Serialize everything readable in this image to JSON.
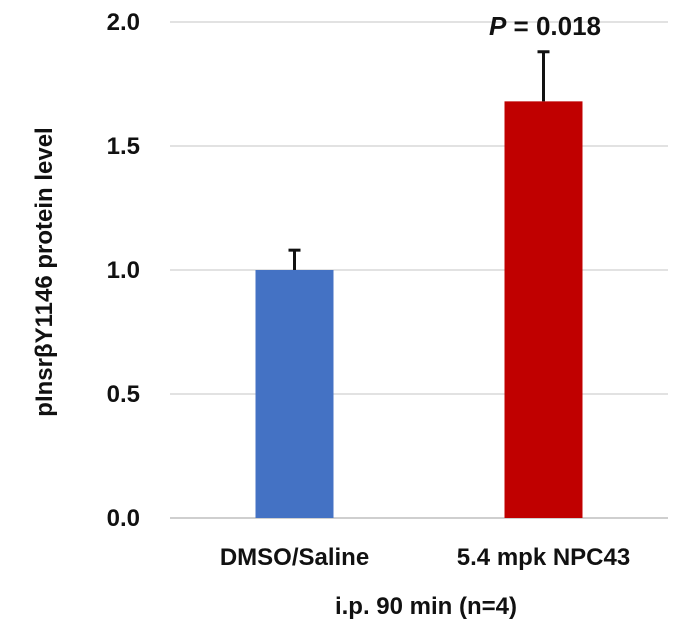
{
  "chart_data": {
    "type": "bar",
    "categories": [
      "DMSO/Saline",
      "5.4 mpk NPC43"
    ],
    "values": [
      1.0,
      1.68
    ],
    "error_plus": [
      0.08,
      0.2
    ],
    "bar_colors": [
      "#4472C4",
      "#C00000"
    ],
    "xlabel": "i.p. 90 min (n=4)",
    "ylabel": "pInsrβY1146 protein level",
    "ylim": [
      0,
      2.0
    ],
    "yticks": [
      "0.0",
      "0.5",
      "1.0",
      "1.5",
      "2.0"
    ],
    "ytick_values": [
      0,
      0.5,
      1.0,
      1.5,
      2.0
    ],
    "grid": true,
    "annotation": {
      "p_label": "P",
      "p_value": " = 0.018"
    }
  }
}
